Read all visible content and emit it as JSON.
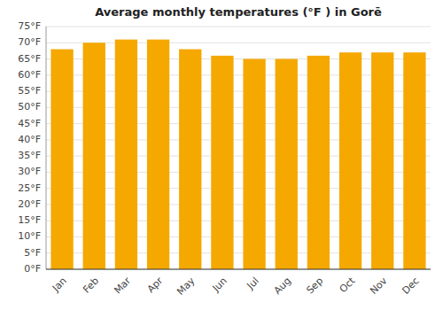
{
  "chart_data": {
    "type": "bar",
    "title": "Average monthly temperatures (°F ) in Gorē",
    "categories": [
      "Jan",
      "Feb",
      "Mar",
      "Apr",
      "May",
      "Jun",
      "Jul",
      "Aug",
      "Sep",
      "Oct",
      "Nov",
      "Dec"
    ],
    "values": [
      68,
      70,
      71,
      71,
      68,
      66,
      65,
      65,
      66,
      67,
      67,
      67
    ],
    "color": "#F5A800",
    "ylim": [
      0,
      75
    ],
    "yticks": [
      {
        "value": 0,
        "label": "0°F"
      },
      {
        "value": 5,
        "label": "5°F"
      },
      {
        "value": 10,
        "label": "10°F"
      },
      {
        "value": 15,
        "label": "15°F"
      },
      {
        "value": 20,
        "label": "20°F"
      },
      {
        "value": 25,
        "label": "25°F"
      },
      {
        "value": 30,
        "label": "30°F"
      },
      {
        "value": 35,
        "label": "35°F"
      },
      {
        "value": 40,
        "label": "40°F"
      },
      {
        "value": 45,
        "label": "45°F"
      },
      {
        "value": 50,
        "label": "50°F"
      },
      {
        "value": 55,
        "label": "55°F"
      },
      {
        "value": 60,
        "label": "60°F"
      },
      {
        "value": 65,
        "label": "65°F"
      },
      {
        "value": 70,
        "label": "70°F"
      },
      {
        "value": 75,
        "label": "75°F"
      }
    ],
    "grid": true
  }
}
